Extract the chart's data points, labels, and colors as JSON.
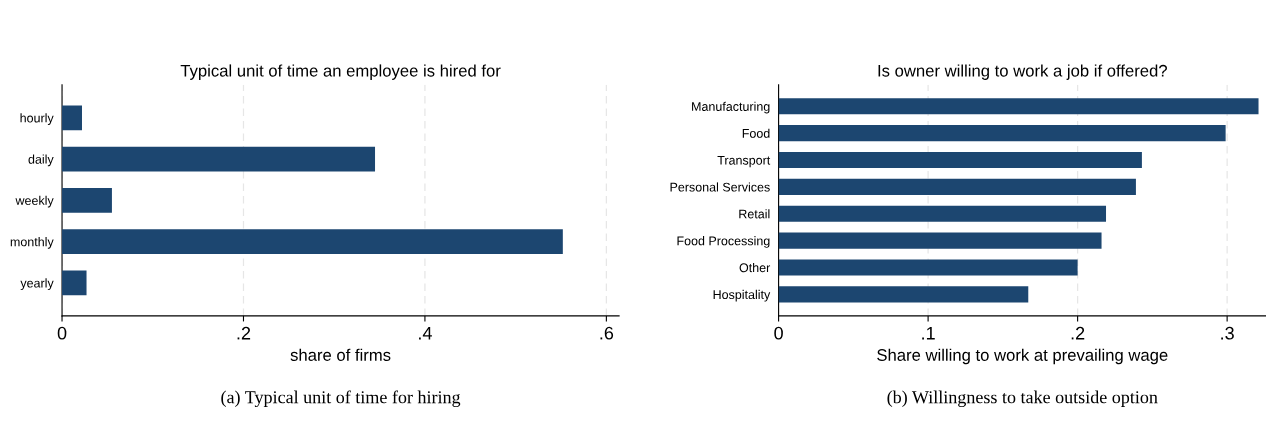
{
  "chart_data": [
    {
      "type": "bar",
      "orientation": "horizontal",
      "title": "Typical unit of time an employee is hired for",
      "xlabel": "share of firms",
      "categories": [
        "hourly",
        "daily",
        "weekly",
        "monthly",
        "yearly"
      ],
      "values": [
        0.022,
        0.345,
        0.055,
        0.552,
        0.027
      ],
      "color": "#1c4670",
      "xlim": [
        0,
        0.614
      ],
      "xticks": [
        0,
        {
          "value": 0.2,
          "label": ".2"
        },
        {
          "value": 0.4,
          "label": ".4"
        },
        {
          "value": 0.6,
          "label": ".6"
        }
      ],
      "grid": "x",
      "annotations": [
        "(a) Typical unit of time for hiring"
      ]
    },
    {
      "type": "bar",
      "orientation": "horizontal",
      "title": "Is owner willing to work a job if offered?",
      "xlabel": "Share willing to work at prevailing wage",
      "categories": [
        "Manufacturing",
        "Food",
        "Transport",
        "Personal Services",
        "Retail",
        "Food Processing",
        "Other",
        "Hospitality"
      ],
      "values": [
        0.321,
        0.299,
        0.243,
        0.239,
        0.219,
        0.216,
        0.2,
        0.167
      ],
      "color": "#1c4670",
      "xlim": [
        0,
        0.326
      ],
      "xticks": [
        0,
        {
          "value": 0.1,
          "label": ".1"
        },
        {
          "value": 0.2,
          "label": ".2"
        },
        {
          "value": 0.3,
          "label": ".3"
        }
      ],
      "grid": "x",
      "annotations": [
        "(b) Willingness to take outside option"
      ]
    }
  ]
}
